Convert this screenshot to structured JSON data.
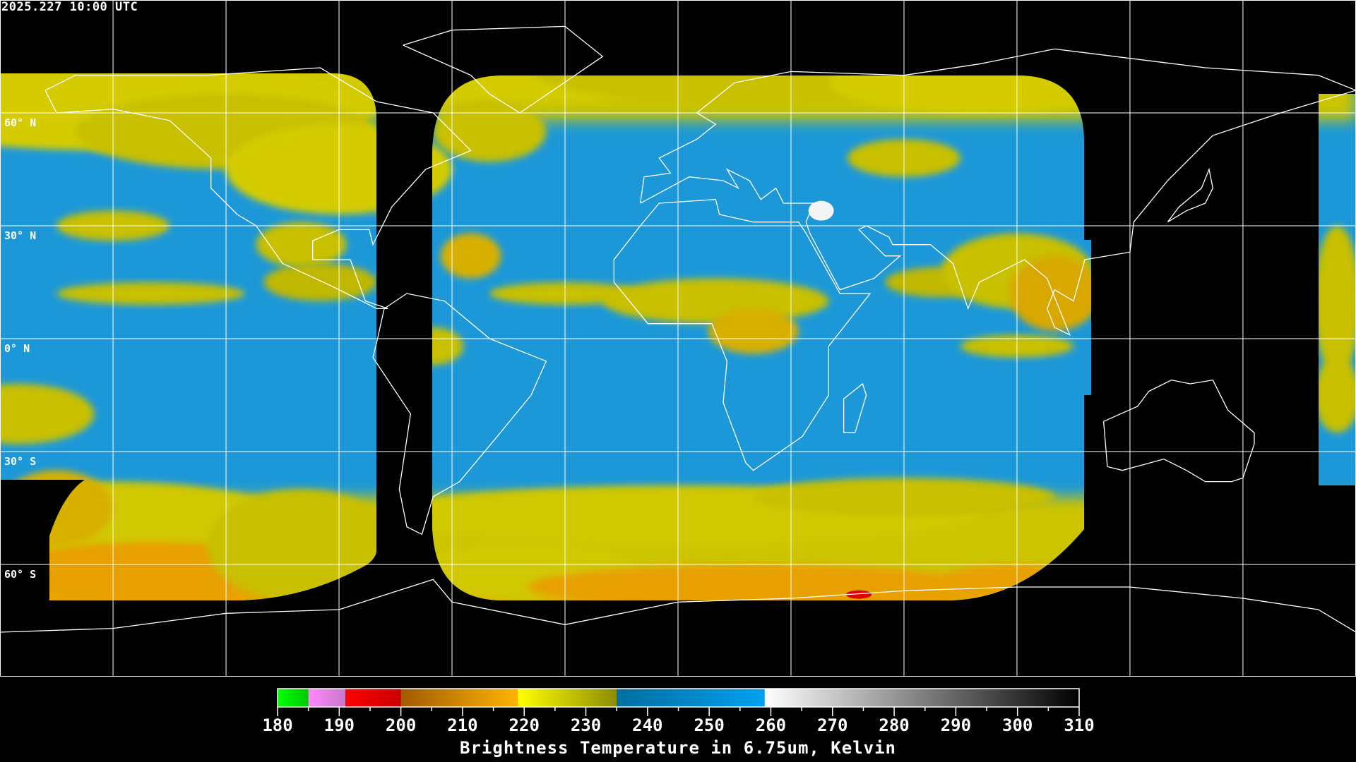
{
  "header": {
    "timestamp": "2025.227 10:00 UTC"
  },
  "map": {
    "projection": "equirectangular",
    "lon_range": [
      -180,
      180
    ],
    "lat_range": [
      -90,
      90
    ],
    "grid_spacing_deg": 30,
    "lat_labels": [
      "60° N",
      "30° N",
      "0° N",
      "30° S",
      "60° S"
    ],
    "colors": {
      "background": "#000000",
      "coastline": "#ffffff",
      "grid": "#ffffff"
    }
  },
  "colorbar": {
    "min": 180,
    "max": 310,
    "tick_labels": [
      "180",
      "190",
      "200",
      "210",
      "220",
      "230",
      "240",
      "250",
      "260",
      "270",
      "280",
      "290",
      "300",
      "310"
    ],
    "title": "Brightness Temperature in 6.75um, Kelvin",
    "segments": [
      {
        "from": 180,
        "to": 185,
        "c1": "#00ff00",
        "c2": "#00c800"
      },
      {
        "from": 185,
        "to": 191,
        "c1": "#ff88ff",
        "c2": "#c878c8"
      },
      {
        "from": 191,
        "to": 200,
        "c1": "#ff0000",
        "c2": "#c80000"
      },
      {
        "from": 200,
        "to": 219,
        "c1": "#a05a00",
        "c2": "#ffb400"
      },
      {
        "from": 219,
        "to": 235,
        "c1": "#ffff00",
        "c2": "#8c8c00"
      },
      {
        "from": 235,
        "to": 259,
        "c1": "#006ea0",
        "c2": "#00a0f0"
      },
      {
        "from": 259,
        "to": 310,
        "c1": "#ffffff",
        "c2": "#000000"
      }
    ]
  }
}
